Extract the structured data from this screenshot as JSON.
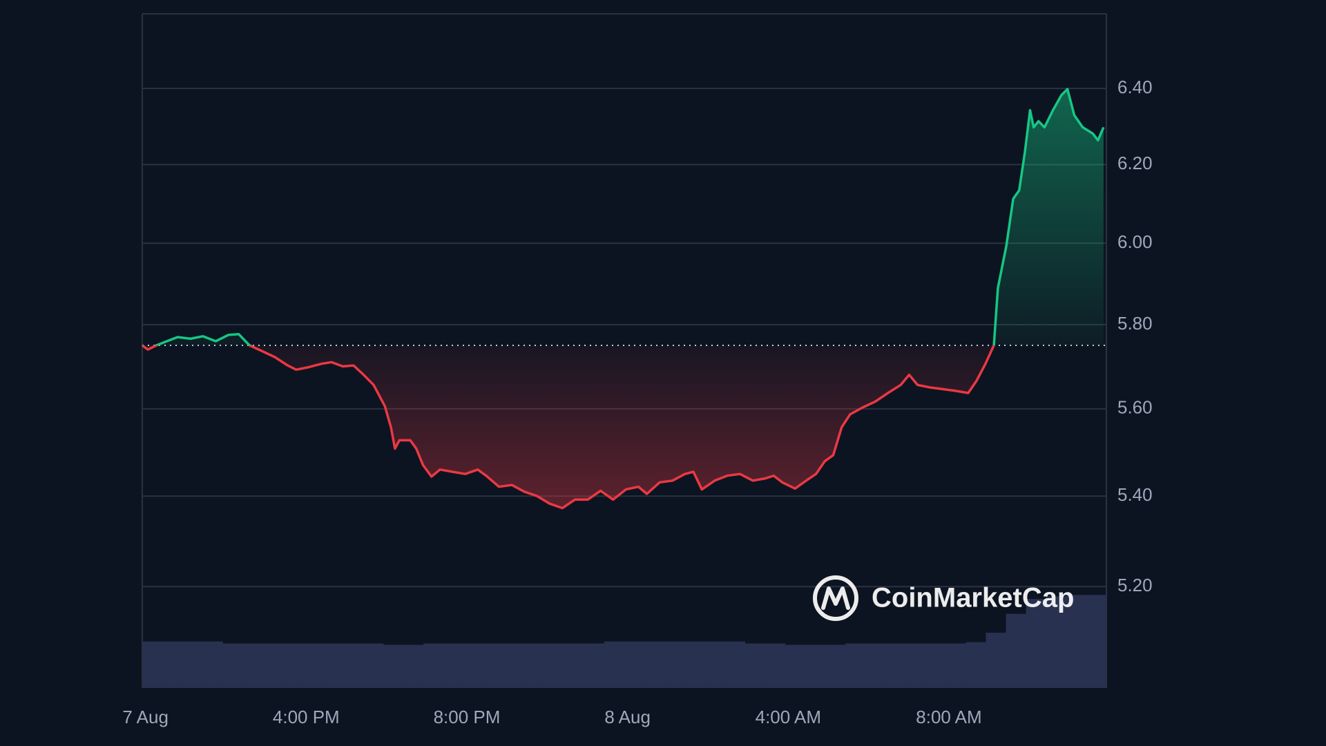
{
  "chart_data": {
    "type": "line",
    "yscale": "log",
    "grid": true,
    "background": "#0d1421",
    "up_color": "#16c784",
    "down_color": "#ea3943",
    "baseline": 5.75,
    "watermark": "CoinMarketCap",
    "xlim": [
      11.92,
      35.92
    ],
    "ylim": [
      4.985,
      6.602
    ],
    "xticks": [
      {
        "value": 12,
        "label": "7 Aug"
      },
      {
        "value": 16,
        "label": "4:00 PM"
      },
      {
        "value": 20,
        "label": "8:00 PM"
      },
      {
        "value": 24,
        "label": "8 Aug"
      },
      {
        "value": 28,
        "label": "4:00 AM"
      },
      {
        "value": 32,
        "label": "8:00 AM"
      }
    ],
    "yticks": [
      {
        "value": 5.2,
        "label": "5.20"
      },
      {
        "value": 5.4,
        "label": "5.40"
      },
      {
        "value": 5.6,
        "label": "5.60"
      },
      {
        "value": 5.8,
        "label": "5.80"
      },
      {
        "value": 6.0,
        "label": "6.00"
      },
      {
        "value": 6.2,
        "label": "6.20"
      },
      {
        "value": 6.4,
        "label": "6.40"
      }
    ],
    "x": [
      11.92,
      12.06,
      12.27,
      12.53,
      12.8,
      13.12,
      13.43,
      13.75,
      14.06,
      14.32,
      14.59,
      14.91,
      15.22,
      15.54,
      15.75,
      16.06,
      16.38,
      16.63,
      16.91,
      17.18,
      17.43,
      17.68,
      17.96,
      18.11,
      18.21,
      18.32,
      18.59,
      18.74,
      18.91,
      19.12,
      19.33,
      19.64,
      19.96,
      20.27,
      20.48,
      20.8,
      21.12,
      21.43,
      21.75,
      22.06,
      22.38,
      22.69,
      23.01,
      23.33,
      23.64,
      23.96,
      24.27,
      24.48,
      24.8,
      25.12,
      25.43,
      25.64,
      25.85,
      26.17,
      26.48,
      26.8,
      27.12,
      27.43,
      27.64,
      27.85,
      28.17,
      28.48,
      28.69,
      28.91,
      29.12,
      29.33,
      29.54,
      29.85,
      30.17,
      30.48,
      30.8,
      31.01,
      31.22,
      31.54,
      31.85,
      32.17,
      32.48,
      32.69,
      32.91,
      33.12,
      33.22,
      33.43,
      33.6,
      33.75,
      33.89,
      34.02,
      34.11,
      34.23,
      34.38,
      34.59,
      34.8,
      34.95,
      35.12,
      35.33,
      35.58,
      35.71,
      35.85
    ],
    "values": [
      5.75,
      5.74,
      5.75,
      5.76,
      5.77,
      5.766,
      5.772,
      5.76,
      5.775,
      5.777,
      5.75,
      5.736,
      5.722,
      5.702,
      5.692,
      5.698,
      5.706,
      5.71,
      5.7,
      5.702,
      5.68,
      5.656,
      5.606,
      5.557,
      5.508,
      5.527,
      5.527,
      5.508,
      5.47,
      5.444,
      5.46,
      5.455,
      5.45,
      5.46,
      5.446,
      5.421,
      5.425,
      5.41,
      5.4,
      5.383,
      5.373,
      5.392,
      5.392,
      5.412,
      5.392,
      5.415,
      5.421,
      5.405,
      5.431,
      5.435,
      5.45,
      5.455,
      5.415,
      5.435,
      5.446,
      5.45,
      5.435,
      5.44,
      5.446,
      5.431,
      5.417,
      5.437,
      5.45,
      5.479,
      5.493,
      5.557,
      5.587,
      5.603,
      5.617,
      5.637,
      5.656,
      5.68,
      5.656,
      5.65,
      5.646,
      5.642,
      5.637,
      5.666,
      5.706,
      5.75,
      5.889,
      5.994,
      6.112,
      6.134,
      6.231,
      6.342,
      6.297,
      6.313,
      6.297,
      6.342,
      6.382,
      6.398,
      6.329,
      6.297,
      6.281,
      6.263,
      6.297
    ],
    "volume": {
      "color": "#283150",
      "vlim": [
        0,
        100
      ],
      "values": [
        6.9,
        6.9,
        6.9,
        6.9,
        6.6,
        6.6,
        6.6,
        6.6,
        6.6,
        6.6,
        6.6,
        6.6,
        6.4,
        6.4,
        6.6,
        6.6,
        6.6,
        6.6,
        6.6,
        6.6,
        6.6,
        6.6,
        6.6,
        6.9,
        6.9,
        6.9,
        6.9,
        6.9,
        6.9,
        6.9,
        6.6,
        6.6,
        6.4,
        6.4,
        6.4,
        6.6,
        6.6,
        6.6,
        6.6,
        6.6,
        6.6,
        6.8,
        8.2,
        11.0,
        13.2,
        13.6,
        13.8,
        13.8
      ]
    }
  }
}
